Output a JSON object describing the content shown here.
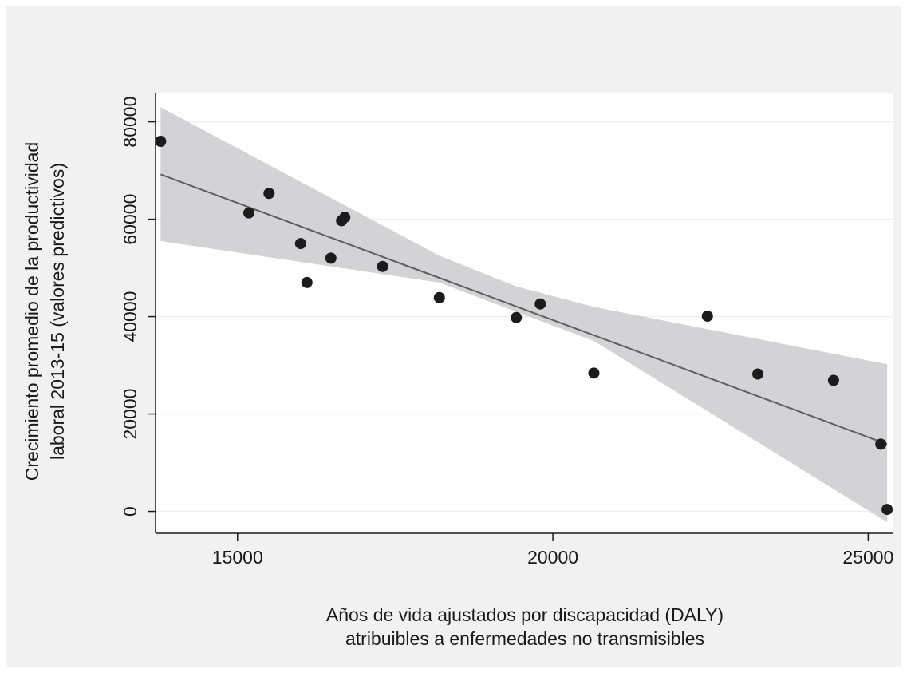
{
  "chart_data": {
    "type": "scatter",
    "xlabel_lines": [
      "Años de vida ajustados por discapacidad (DALY)",
      "atribuibles a enfermedades no transmisibles"
    ],
    "ylabel_lines": [
      "Crecimiento promedio de la productividad",
      "laboral 2013-15 (valores predictivos)"
    ],
    "xlim": [
      13700,
      25400
    ],
    "ylim": [
      -4500,
      86000
    ],
    "xticks": [
      15000,
      20000,
      25000
    ],
    "yticks": [
      0,
      20000,
      40000,
      60000,
      80000
    ],
    "grid": true,
    "points": [
      {
        "x": 13780,
        "y": 76000
      },
      {
        "x": 15180,
        "y": 61300
      },
      {
        "x": 15500,
        "y": 65300
      },
      {
        "x": 16000,
        "y": 55000
      },
      {
        "x": 16100,
        "y": 47000
      },
      {
        "x": 16480,
        "y": 52000
      },
      {
        "x": 16650,
        "y": 59700
      },
      {
        "x": 16700,
        "y": 60400
      },
      {
        "x": 17300,
        "y": 50300
      },
      {
        "x": 18200,
        "y": 43900
      },
      {
        "x": 19420,
        "y": 39800
      },
      {
        "x": 19800,
        "y": 42600
      },
      {
        "x": 20650,
        "y": 28400
      },
      {
        "x": 22450,
        "y": 40100
      },
      {
        "x": 23250,
        "y": 28200
      },
      {
        "x": 24450,
        "y": 26900
      },
      {
        "x": 25200,
        "y": 13800
      },
      {
        "x": 25300,
        "y": 400
      }
    ],
    "fit_line": {
      "x": [
        13780,
        25300
      ],
      "y": [
        69200,
        13800
      ]
    },
    "ci_band": {
      "x": [
        13780,
        18200,
        19420,
        20650,
        25300
      ],
      "upper": [
        83000,
        52500,
        46200,
        42000,
        30200
      ],
      "lower": [
        55500,
        47000,
        41000,
        35000,
        -2200
      ]
    },
    "colors": {
      "outer_background": "#f1f1f1",
      "plot_background": "#ffffff",
      "gridline": "#eaf1f3",
      "band": "#d3d3d5",
      "fit_line": "#5f5f5f",
      "marker": "#1c1c1c",
      "axis": "#1a1a1a"
    }
  }
}
